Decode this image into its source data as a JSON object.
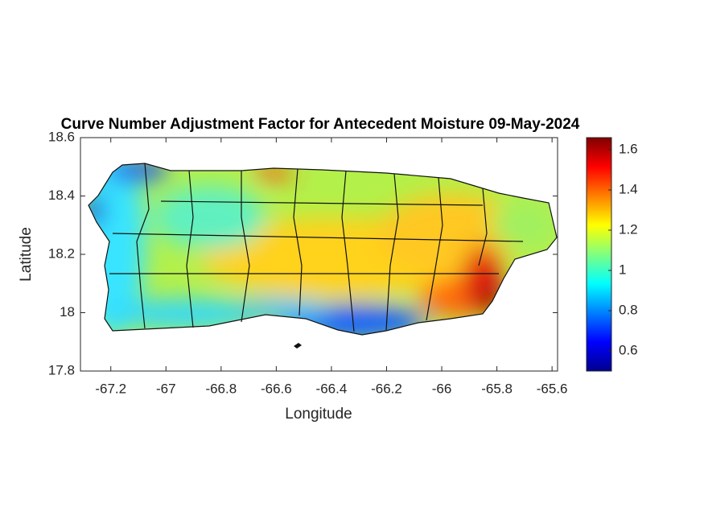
{
  "chart_data": {
    "type": "map",
    "title": "Curve Number Adjustment Factor for Antecedent Moisture 09-May-2024",
    "x_label": "Longitude",
    "y_label": "Latitude",
    "xlim": [
      -67.31,
      -65.58
    ],
    "xticks": [
      -67.2,
      -67,
      -66.8,
      -66.6,
      -66.4,
      -66.2,
      -66,
      -65.8,
      -65.6
    ],
    "ylim": [
      17.8,
      18.6
    ],
    "yticks": [
      17.8,
      18,
      18.2,
      18.4,
      18.6
    ],
    "colormap": "jet",
    "clim": [
      0.5,
      1.66
    ],
    "cticks": [
      0.6,
      0.8,
      1,
      1.2,
      1.4,
      1.6
    ]
  }
}
